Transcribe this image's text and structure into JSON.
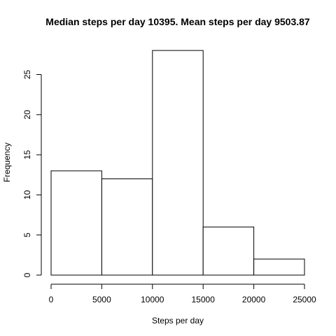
{
  "chart_data": {
    "type": "bar",
    "title": "Median steps per day 10395. Mean steps per day 9503.87",
    "xlabel": "Steps per day",
    "ylabel": "Frequency",
    "bins": [
      {
        "from": 0,
        "to": 5000,
        "count": 13
      },
      {
        "from": 5000,
        "to": 10000,
        "count": 12
      },
      {
        "from": 10000,
        "to": 15000,
        "count": 28
      },
      {
        "from": 15000,
        "to": 20000,
        "count": 6
      },
      {
        "from": 20000,
        "to": 25000,
        "count": 2
      }
    ],
    "xlim": [
      0,
      25000
    ],
    "ylim": [
      0,
      28
    ],
    "x_ticks": [
      0,
      5000,
      10000,
      15000,
      20000,
      25000
    ],
    "y_ticks": [
      0,
      5,
      10,
      15,
      20,
      25
    ],
    "grid": false,
    "legend": "none"
  }
}
